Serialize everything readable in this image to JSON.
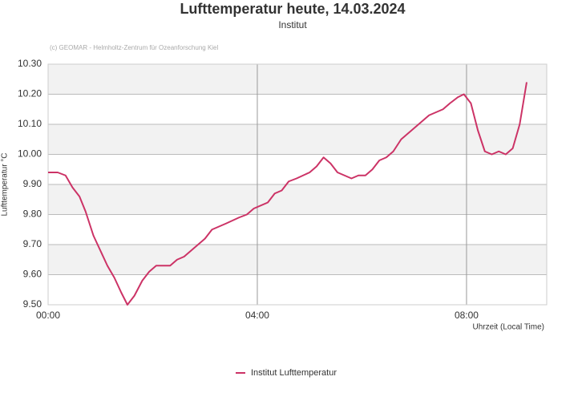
{
  "chart_data": {
    "type": "line",
    "title": "Lufttemperatur heute, 14.03.2024",
    "subtitle": "Institut",
    "credit": "(c) GEOMAR - Helmholtz-Zentrum für Ozeanforschung Kiel",
    "x_label": "Uhrzeit (Local Time)",
    "y_label": "Lufttemperatur °C",
    "x": [
      0,
      11,
      20,
      28,
      36,
      43,
      52,
      60,
      68,
      76,
      84,
      91,
      99,
      108,
      116,
      124,
      140,
      148,
      156,
      172,
      180,
      188,
      204,
      219,
      228,
      236,
      252,
      260,
      268,
      276,
      285,
      300,
      308,
      316,
      324,
      332,
      340,
      348,
      356,
      364,
      372,
      380,
      388,
      396,
      405,
      413,
      421,
      429,
      437,
      453,
      461,
      470,
      477,
      485,
      493,
      501,
      509,
      517,
      525,
      533,
      541,
      549
    ],
    "series": [
      {
        "name": "Institut Lufttemperatur",
        "color": "#cc3366",
        "values": [
          9.94,
          9.94,
          9.93,
          9.89,
          9.86,
          9.81,
          9.73,
          9.68,
          9.63,
          9.59,
          9.54,
          9.5,
          9.53,
          9.58,
          9.61,
          9.63,
          9.63,
          9.65,
          9.66,
          9.7,
          9.72,
          9.75,
          9.77,
          9.79,
          9.8,
          9.82,
          9.84,
          9.87,
          9.88,
          9.91,
          9.92,
          9.94,
          9.96,
          9.99,
          9.97,
          9.94,
          9.93,
          9.92,
          9.93,
          9.93,
          9.95,
          9.98,
          9.99,
          10.01,
          10.05,
          10.07,
          10.09,
          10.11,
          10.13,
          10.15,
          10.17,
          10.19,
          10.2,
          10.17,
          10.08,
          10.01,
          10.0,
          10.01,
          10.0,
          10.02,
          10.1,
          10.24
        ]
      }
    ],
    "xlim": [
      0,
      572
    ],
    "xticks": [
      {
        "value": 0,
        "label": "00:00"
      },
      {
        "value": 240,
        "label": "04:00"
      },
      {
        "value": 480,
        "label": "08:00"
      }
    ],
    "ylim": [
      9.5,
      10.3
    ],
    "yticks": [
      {
        "value": 9.5,
        "label": "9.50"
      },
      {
        "value": 9.6,
        "label": "9.60"
      },
      {
        "value": 9.7,
        "label": "9.70"
      },
      {
        "value": 9.8,
        "label": "9.80"
      },
      {
        "value": 9.9,
        "label": "9.90"
      },
      {
        "value": 10.0,
        "label": "10.00"
      },
      {
        "value": 10.1,
        "label": "10.10"
      },
      {
        "value": 10.2,
        "label": "10.20"
      },
      {
        "value": 10.3,
        "label": "10.30"
      }
    ],
    "grid": true,
    "legend": "bottom"
  }
}
